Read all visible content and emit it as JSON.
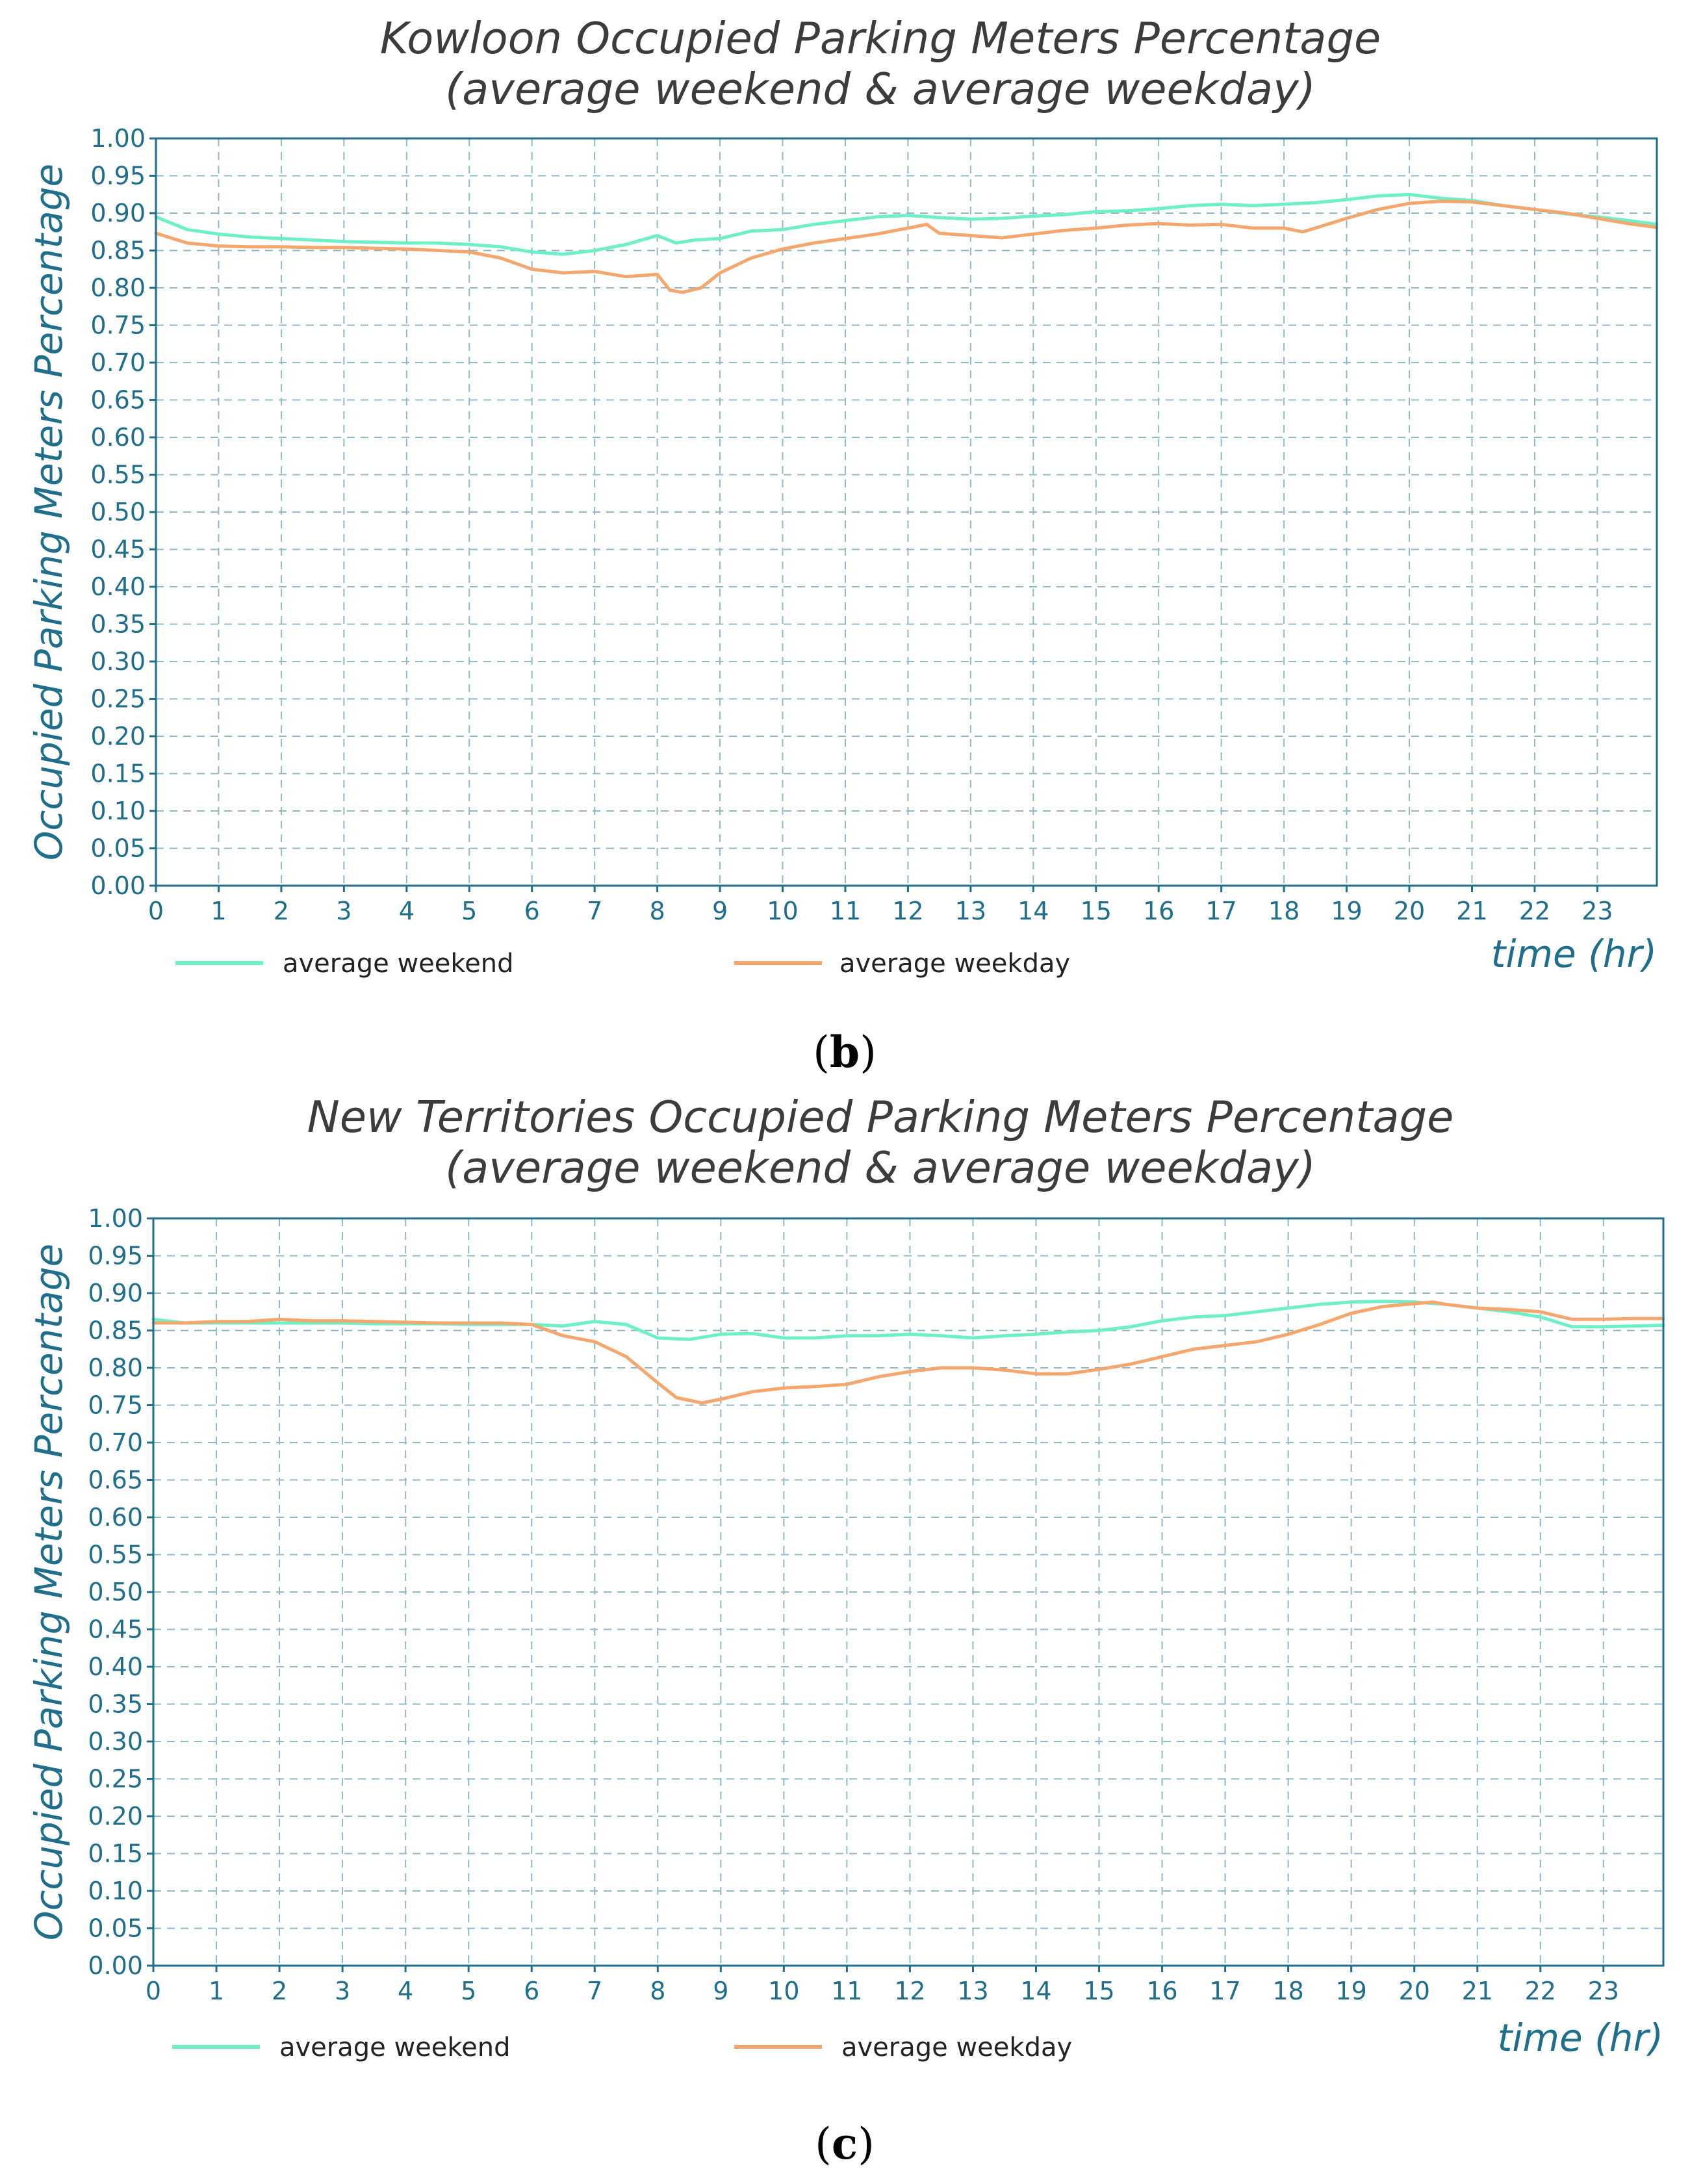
{
  "colors": {
    "weekend": "#6ef0c6",
    "weekday": "#f5a66c",
    "axis": "#1e6e8c",
    "title": "#3c3c3c"
  },
  "chart_data": [
    {
      "type": "line",
      "title": "Kowloon Occupied Parking Meters Percentage",
      "subtitle": "(average weekend & average weekday)",
      "xlabel": "time (hr)",
      "ylabel": "Occupied Parking Meters Percentage",
      "xlim": [
        0,
        23.95
      ],
      "ylim": [
        0,
        1
      ],
      "x_ticks": [
        0,
        1,
        2,
        3,
        4,
        5,
        6,
        7,
        8,
        9,
        10,
        11,
        12,
        13,
        14,
        15,
        16,
        17,
        18,
        19,
        20,
        21,
        22,
        23
      ],
      "y_ticks": [
        "0.00",
        "0.05",
        "0.10",
        "0.15",
        "0.20",
        "0.25",
        "0.30",
        "0.35",
        "0.40",
        "0.45",
        "0.50",
        "0.55",
        "0.60",
        "0.65",
        "0.70",
        "0.75",
        "0.80",
        "0.85",
        "0.90",
        "0.95",
        "1.00"
      ],
      "grid": true,
      "legend": "bottom",
      "caption": "(b)",
      "series": [
        {
          "name": "average weekend",
          "color": "#6ef0c6",
          "x": [
            0,
            0.5,
            1,
            1.5,
            2,
            2.5,
            3,
            3.5,
            4,
            4.5,
            5,
            5.5,
            6,
            6.5,
            7,
            7.5,
            8,
            8.3,
            8.6,
            9,
            9.5,
            10,
            10.5,
            11,
            11.5,
            12,
            12.5,
            13,
            13.5,
            14,
            14.5,
            15,
            15.5,
            16,
            16.5,
            17,
            17.5,
            18,
            18.5,
            19,
            19.5,
            20,
            20.5,
            21,
            21.5,
            22,
            22.5,
            23,
            23.5,
            23.95
          ],
          "y": [
            0.895,
            0.878,
            0.872,
            0.868,
            0.866,
            0.864,
            0.862,
            0.861,
            0.86,
            0.86,
            0.858,
            0.855,
            0.848,
            0.845,
            0.85,
            0.858,
            0.87,
            0.86,
            0.864,
            0.866,
            0.876,
            0.878,
            0.885,
            0.89,
            0.895,
            0.897,
            0.894,
            0.892,
            0.893,
            0.896,
            0.898,
            0.902,
            0.903,
            0.906,
            0.91,
            0.912,
            0.91,
            0.912,
            0.914,
            0.918,
            0.923,
            0.925,
            0.92,
            0.917,
            0.91,
            0.905,
            0.899,
            0.895,
            0.89,
            0.885
          ]
        },
        {
          "name": "average weekday",
          "color": "#f5a66c",
          "x": [
            0,
            0.5,
            1,
            1.5,
            2,
            2.5,
            3,
            3.5,
            4,
            4.5,
            5,
            5.5,
            6,
            6.5,
            7,
            7.5,
            8,
            8.2,
            8.4,
            8.7,
            9,
            9.5,
            10,
            10.5,
            11,
            11.5,
            12,
            12.3,
            12.5,
            13,
            13.5,
            14,
            14.5,
            15,
            15.5,
            16,
            16.5,
            17,
            17.5,
            18,
            18.3,
            18.5,
            19,
            19.5,
            20,
            20.5,
            21,
            21.5,
            22,
            22.5,
            23,
            23.5,
            23.95
          ],
          "y": [
            0.873,
            0.86,
            0.856,
            0.855,
            0.855,
            0.854,
            0.854,
            0.853,
            0.852,
            0.85,
            0.848,
            0.84,
            0.825,
            0.82,
            0.822,
            0.815,
            0.818,
            0.797,
            0.794,
            0.8,
            0.82,
            0.84,
            0.852,
            0.86,
            0.866,
            0.872,
            0.88,
            0.885,
            0.873,
            0.87,
            0.867,
            0.872,
            0.877,
            0.88,
            0.884,
            0.886,
            0.884,
            0.885,
            0.88,
            0.88,
            0.875,
            0.88,
            0.893,
            0.905,
            0.913,
            0.916,
            0.915,
            0.91,
            0.905,
            0.9,
            0.893,
            0.886,
            0.881
          ]
        }
      ]
    },
    {
      "type": "line",
      "title": "New Territories Occupied Parking Meters Percentage",
      "subtitle": "(average weekend & average weekday)",
      "xlabel": "time (hr)",
      "ylabel": "Occupied Parking Meters Percentage",
      "xlim": [
        0,
        23.95
      ],
      "ylim": [
        0,
        1
      ],
      "x_ticks": [
        0,
        1,
        2,
        3,
        4,
        5,
        6,
        7,
        8,
        9,
        10,
        11,
        12,
        13,
        14,
        15,
        16,
        17,
        18,
        19,
        20,
        21,
        22,
        23
      ],
      "y_ticks": [
        "0.00",
        "0.05",
        "0.10",
        "0.15",
        "0.20",
        "0.25",
        "0.30",
        "0.35",
        "0.40",
        "0.45",
        "0.50",
        "0.55",
        "0.60",
        "0.65",
        "0.70",
        "0.75",
        "0.80",
        "0.85",
        "0.90",
        "0.95",
        "1.00"
      ],
      "grid": true,
      "legend": "bottom",
      "caption": "(c)",
      "series": [
        {
          "name": "average weekend",
          "color": "#6ef0c6",
          "x": [
            0,
            0.5,
            1,
            1.5,
            2,
            2.5,
            3,
            3.5,
            4,
            4.5,
            5,
            5.5,
            6,
            6.5,
            7,
            7.5,
            8,
            8.5,
            9,
            9.5,
            10,
            10.5,
            11,
            11.5,
            12,
            12.5,
            13,
            13.5,
            14,
            14.5,
            15,
            15.5,
            16,
            16.5,
            17,
            17.5,
            18,
            18.5,
            19,
            19.5,
            20,
            20.5,
            21,
            21.5,
            22,
            22.5,
            23,
            23.5,
            23.95
          ],
          "y": [
            0.865,
            0.86,
            0.86,
            0.86,
            0.86,
            0.86,
            0.86,
            0.859,
            0.859,
            0.859,
            0.858,
            0.858,
            0.858,
            0.856,
            0.862,
            0.858,
            0.84,
            0.838,
            0.845,
            0.846,
            0.84,
            0.84,
            0.843,
            0.843,
            0.845,
            0.843,
            0.84,
            0.843,
            0.845,
            0.848,
            0.85,
            0.855,
            0.863,
            0.868,
            0.87,
            0.875,
            0.88,
            0.885,
            0.888,
            0.889,
            0.888,
            0.885,
            0.88,
            0.875,
            0.868,
            0.855,
            0.855,
            0.856,
            0.857
          ]
        },
        {
          "name": "average weekday",
          "color": "#f5a66c",
          "x": [
            0,
            0.5,
            1,
            1.5,
            2,
            2.5,
            3,
            3.5,
            4,
            4.5,
            5,
            5.5,
            6,
            6.5,
            7,
            7.5,
            8,
            8.3,
            8.7,
            9,
            9.5,
            10,
            10.5,
            11,
            11.5,
            12,
            12.5,
            13,
            13.5,
            14,
            14.5,
            15,
            15.5,
            16,
            16.5,
            17,
            17.5,
            18,
            18.5,
            19,
            19.5,
            20,
            20.3,
            20.5,
            21,
            21.5,
            22,
            22.5,
            23,
            23.5,
            23.95
          ],
          "y": [
            0.86,
            0.86,
            0.862,
            0.862,
            0.865,
            0.863,
            0.863,
            0.862,
            0.861,
            0.86,
            0.86,
            0.86,
            0.858,
            0.843,
            0.835,
            0.815,
            0.78,
            0.76,
            0.753,
            0.758,
            0.768,
            0.773,
            0.775,
            0.778,
            0.788,
            0.795,
            0.8,
            0.8,
            0.797,
            0.792,
            0.792,
            0.798,
            0.805,
            0.815,
            0.825,
            0.83,
            0.835,
            0.845,
            0.858,
            0.873,
            0.882,
            0.886,
            0.888,
            0.885,
            0.88,
            0.878,
            0.875,
            0.865,
            0.865,
            0.866,
            0.866
          ]
        }
      ]
    }
  ]
}
